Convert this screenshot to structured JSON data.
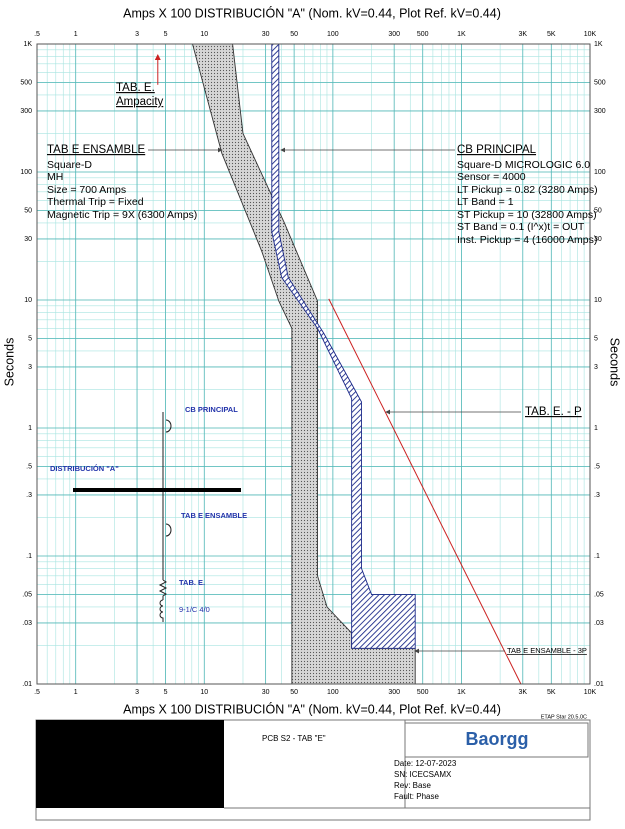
{
  "chart_data": {
    "type": "line",
    "title": "Amps  X  100   DISTRIBUCIÓN \"A\" (Nom. kV=0.44, Plot Ref. kV=0.44)",
    "ylabel": "Seconds",
    "xscale": "log",
    "yscale": "log",
    "grid": true,
    "minor_grid": true,
    "xlim": [
      0.5,
      10000
    ],
    "ylim": [
      0.01,
      1000
    ],
    "xticks": [
      {
        "value": 0.5,
        "label": ".5"
      },
      1,
      3,
      5,
      10,
      30,
      50,
      100,
      300,
      500,
      {
        "value": 1000,
        "label": "1K"
      },
      {
        "value": 3000,
        "label": "3K"
      },
      {
        "value": 5000,
        "label": "5K"
      },
      {
        "value": 10000,
        "label": "10K"
      }
    ],
    "yticks": [
      {
        "value": 1000,
        "label": "1K"
      },
      500,
      300,
      100,
      50,
      30,
      10,
      5,
      3,
      1,
      {
        "value": 0.5,
        "label": ".5"
      },
      {
        "value": 0.3,
        "label": ".3"
      },
      {
        "value": 0.1,
        "label": ".1"
      },
      {
        "value": 0.05,
        "label": ".05"
      },
      {
        "value": 0.03,
        "label": ".03"
      },
      {
        "value": 0.01,
        "label": ".01"
      }
    ],
    "series": [
      {
        "color": "#333333",
        "fill": "dots",
        "x": [
          8.1,
          13.7,
          28,
          38,
          48,
          48,
          437,
          437,
          140,
          140,
          90,
          76,
          76,
          42,
          20,
          16.6
        ],
        "values": [
          1000,
          140,
          24,
          9.8,
          6,
          0.01,
          0.01,
          0.019,
          0.019,
          0.025,
          0.04,
          0.07,
          9.8,
          40,
          200,
          1000
        ]
      },
      {
        "color": "#1c2a8a",
        "fill": "hatch",
        "x": [
          33.5,
          33.5,
          40,
          76,
          140,
          140,
          437,
          437,
          200,
          167,
          167,
          85,
          45,
          38,
          38
        ],
        "values": [
          1000,
          34,
          15,
          6,
          1.7,
          0.019,
          0.019,
          0.05,
          0.05,
          0.08,
          1.6,
          5.5,
          15,
          34,
          1000
        ]
      },
      {
        "color": "#cc2222",
        "x": [
          93,
          2900
        ],
        "values": [
          10.2,
          0.01
        ]
      },
      {
        "color": "#cc2222",
        "arrow": true,
        "x": [
          4.35,
          4.35
        ],
        "values": [
          480,
          820
        ]
      }
    ],
    "annotations": [
      "TAB. E.",
      "Ampacity",
      "TAB E ENSAMBLE",
      "Square-D",
      "MH",
      "Size = 700 Amps",
      "Thermal Trip = Fixed",
      "Magnetic Trip = 9X (6300 Amps)",
      "CB PRINCIPAL",
      "Square-D  MICROLOGIC 6.0",
      "Sensor = 4000",
      "LT Pickup = 0.82 (3280 Amps)",
      "LT Band = 1",
      "ST Pickup = 10 (32800 Amps)",
      "ST Band = 0.1  (I^x)t = OUT",
      "Inst. Pickup = 4 (16000 Amps)",
      "TAB. E. - P",
      "TAB E ENSAMBLE - 3P"
    ],
    "one_line": [
      "CB PRINCIPAL",
      "DISTRIBUCIÓN \"A\"",
      "TAB E ENSAMBLE",
      "TAB. E.",
      "9-1/C 4/0"
    ],
    "software": "ETAP Star 20.5.0C"
  },
  "title_block": {
    "drawing": "PCB S2 - TAB \"E\"",
    "logo": "Baorgg",
    "fields": [
      "Date:  12-07-2023",
      "SN:    ICECSAMX",
      "Rev:   Base",
      "Fault:  Phase"
    ]
  }
}
